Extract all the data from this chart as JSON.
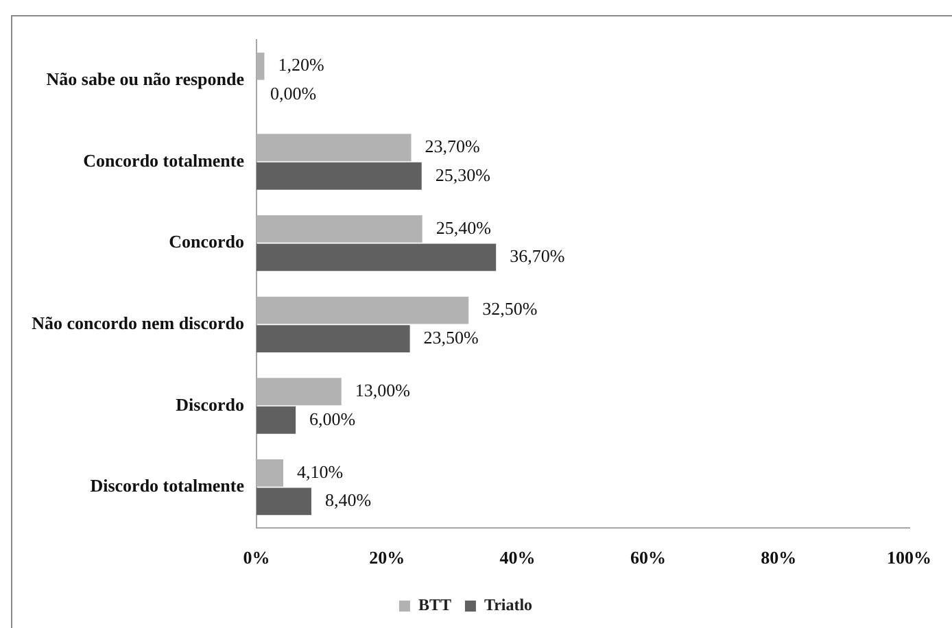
{
  "chart_data": {
    "type": "bar",
    "orientation": "horizontal",
    "categories": [
      "Não sabe ou não responde",
      "Concordo totalmente",
      "Concordo",
      "Não concordo nem discordo",
      "Discordo",
      "Discordo totalmente"
    ],
    "series": [
      {
        "name": "BTT",
        "color": "#b2b2b2",
        "values": [
          1.2,
          23.7,
          25.4,
          32.5,
          13.0,
          4.1
        ],
        "value_labels": [
          "1,20%",
          "23,70%",
          "25,40%",
          "32,50%",
          "13,00%",
          "4,10%"
        ]
      },
      {
        "name": "Triatlo",
        "color": "#606060",
        "values": [
          0,
          25.3,
          36.7,
          23.5,
          6.0,
          8.4
        ],
        "value_labels": [
          "0,00%",
          "25,30%",
          "36,70%",
          "23,50%",
          "6,00%",
          "8,40%"
        ]
      }
    ],
    "xlim": [
      0,
      100
    ],
    "xticks": [
      {
        "value": 0,
        "label": "0%"
      },
      {
        "value": 20,
        "label": "20%"
      },
      {
        "value": 40,
        "label": "40%"
      },
      {
        "value": 60,
        "label": "60%"
      },
      {
        "value": 80,
        "label": "80%"
      },
      {
        "value": 100,
        "label": "100%"
      }
    ],
    "grid": false,
    "legend": "bottom"
  }
}
